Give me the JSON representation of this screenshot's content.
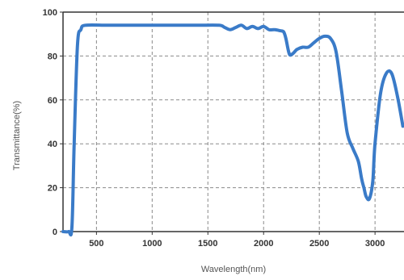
{
  "chart_data": {
    "type": "line",
    "xlabel": "Wavelength(nm)",
    "ylabel": "Transmittance(%)",
    "xlim": [
      200,
      3260
    ],
    "ylim": [
      0,
      100
    ],
    "x_ticks": [
      500,
      1000,
      1500,
      2000,
      2500,
      3000
    ],
    "y_ticks": [
      0,
      20,
      40,
      60,
      80,
      100
    ],
    "grid": true,
    "grid_style": "dashed",
    "line_color": "#3a7bc8",
    "series": [
      {
        "x": [
          200,
          250,
          280,
          300,
          330,
          360,
          400,
          600,
          800,
          1000,
          1200,
          1400,
          1600,
          1650,
          1700,
          1750,
          1800,
          1850,
          1900,
          1950,
          2000,
          2050,
          2100,
          2150,
          2180,
          2200,
          2230,
          2260,
          2300,
          2350,
          2400,
          2450,
          2500,
          2550,
          2600,
          2650,
          2700,
          2750,
          2800,
          2850,
          2880,
          2900,
          2920,
          2950,
          2980,
          3000,
          3050,
          3100,
          3150,
          3200,
          3250
        ],
        "y": [
          0,
          0,
          2,
          40,
          85,
          92,
          94,
          94,
          94,
          94,
          94,
          94,
          94,
          93,
          92,
          93,
          94,
          92.5,
          93.5,
          92.5,
          93.5,
          92,
          92,
          91.5,
          91,
          88,
          81,
          81,
          83,
          84,
          84,
          86,
          88,
          89,
          88,
          82,
          64,
          45,
          38,
          32,
          24,
          20,
          16,
          15,
          23,
          40,
          63,
          72,
          72,
          62,
          48
        ]
      }
    ]
  }
}
